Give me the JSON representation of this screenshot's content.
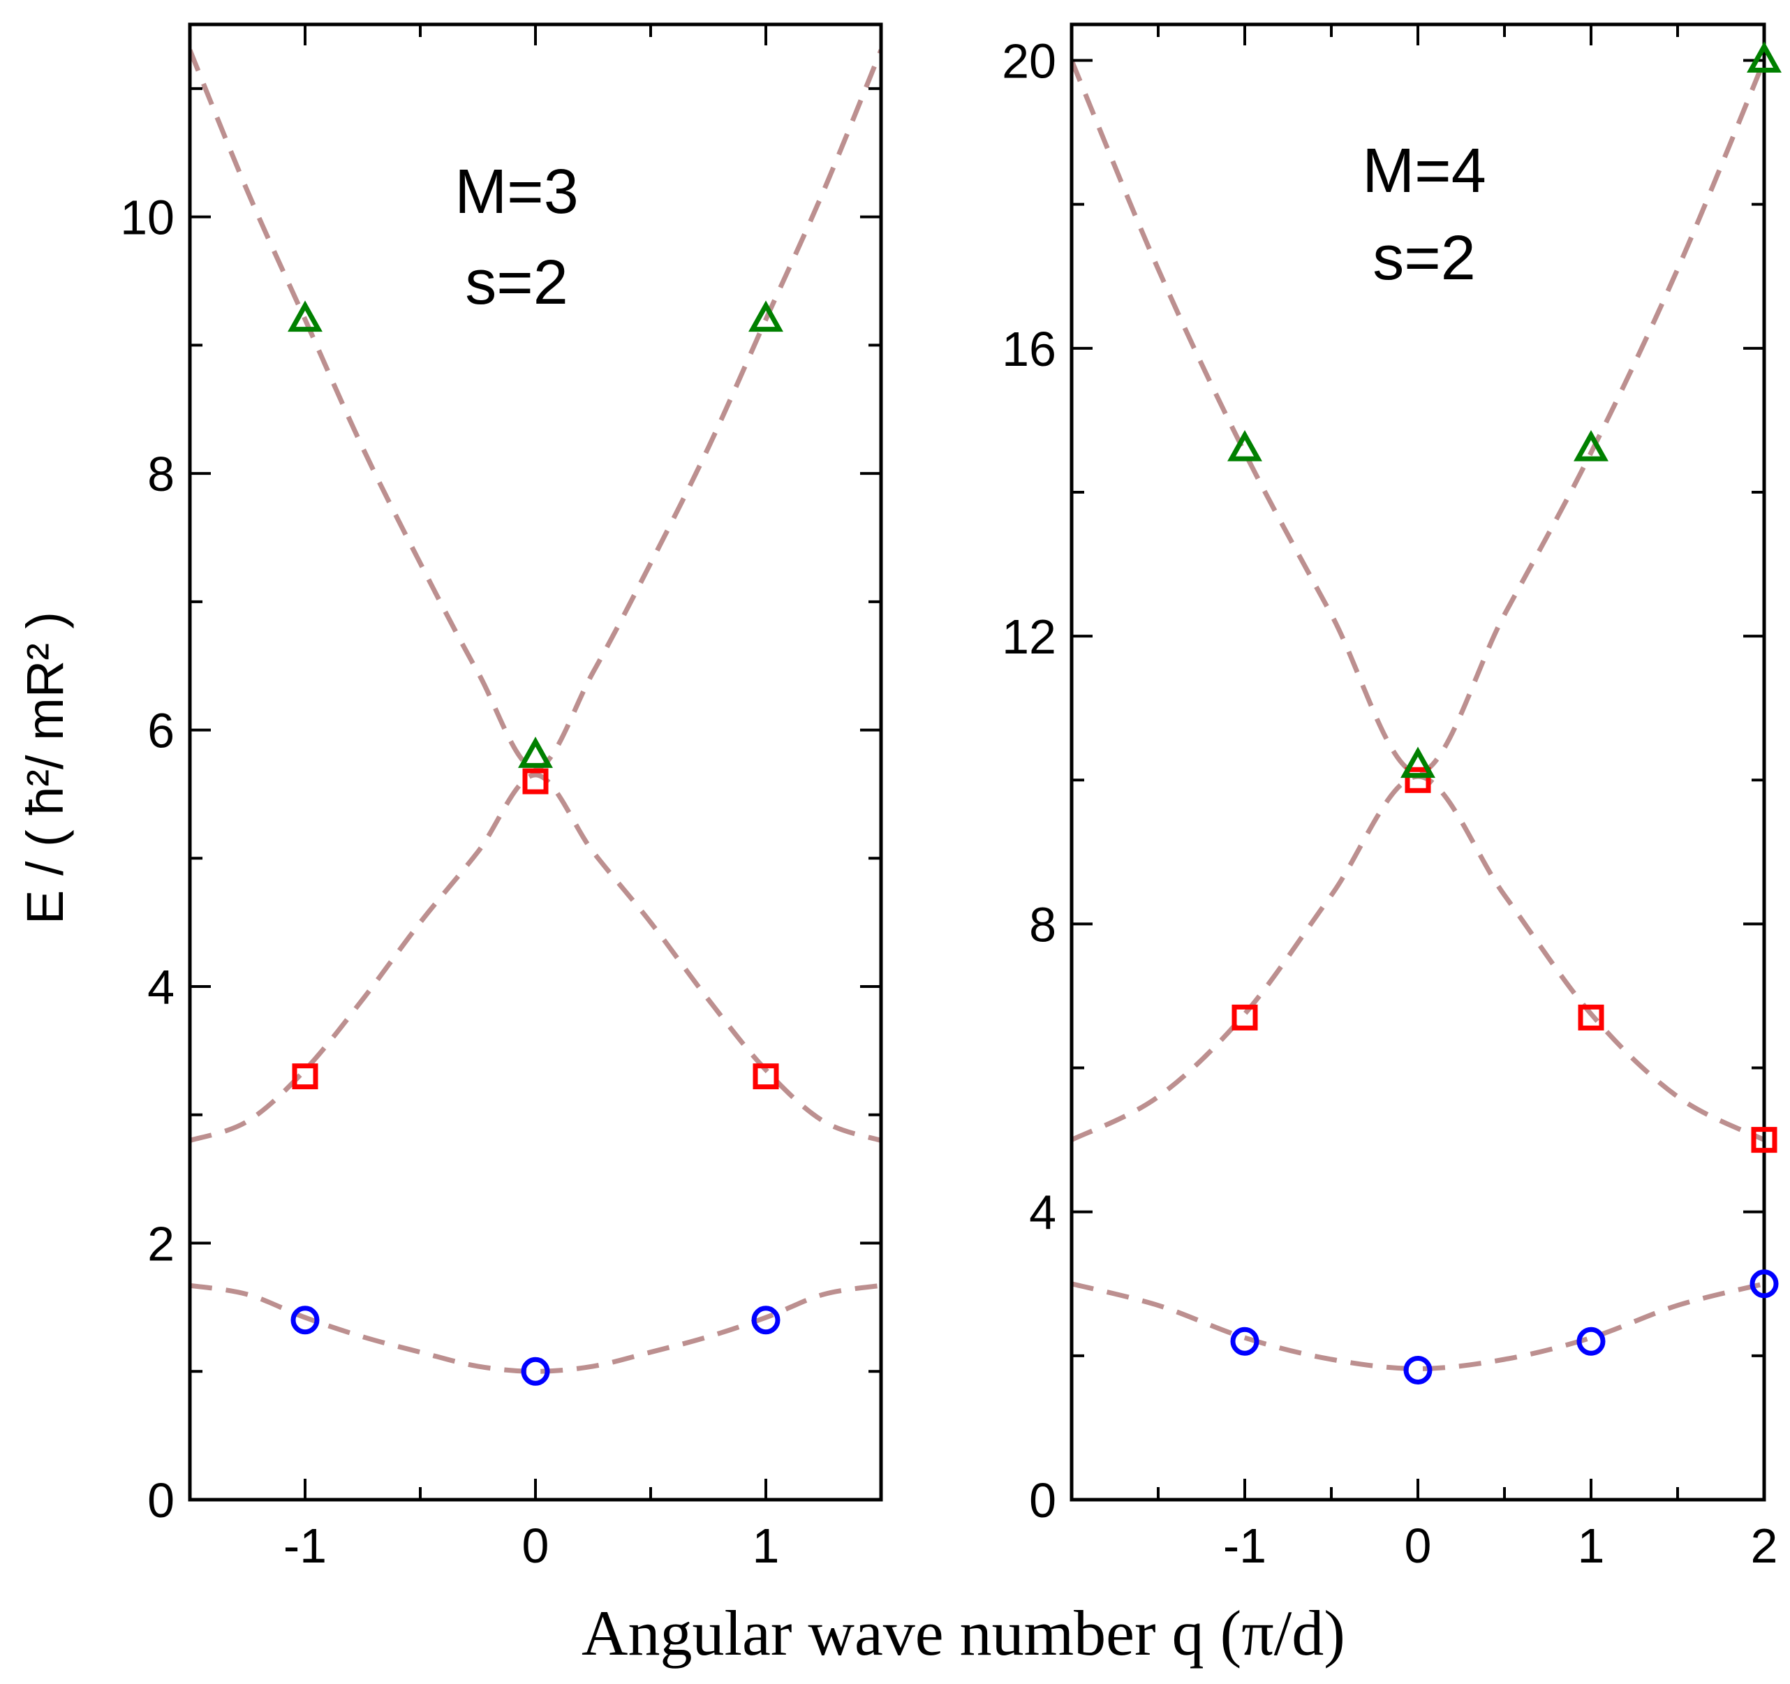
{
  "figure": {
    "ylabel": "E / ( ħ²/ mR² )",
    "xlabel": "Angular wave number q (π/d)"
  },
  "chart_data": [
    {
      "type": "scatter",
      "annotation": [
        "M=3",
        "s=2"
      ],
      "xlim": [
        -1.5,
        1.5
      ],
      "ylim": [
        0,
        11.5
      ],
      "x_ticks": [
        -1,
        0,
        1
      ],
      "x_tick_labels": [
        "-1",
        "0",
        "1"
      ],
      "y_ticks": [
        0,
        2,
        4,
        6,
        8,
        10
      ],
      "y_tick_labels": [
        "0",
        "2",
        "4",
        "6",
        "8",
        "10"
      ],
      "series": [
        {
          "marker": "circle",
          "color": "#0000ff",
          "x": [
            -1,
            0,
            1
          ],
          "y": [
            1.4,
            1.0,
            1.4
          ]
        },
        {
          "marker": "square",
          "color": "#ff0000",
          "x": [
            -1,
            0,
            1
          ],
          "y": [
            3.3,
            5.6,
            3.3
          ]
        },
        {
          "marker": "triangle",
          "color": "#008000",
          "x": [
            -1,
            0,
            1
          ],
          "y": [
            9.2,
            5.8,
            9.2
          ]
        }
      ],
      "curves": {
        "color": "#bc8f8f",
        "style": "dashed",
        "bands": [
          {
            "x": [
              -1.5,
              -1.25,
              -1,
              -0.75,
              -0.5,
              -0.25,
              0,
              0.25,
              0.5,
              0.75,
              1,
              1.25,
              1.5
            ],
            "y": [
              1.67,
              1.6,
              1.42,
              1.27,
              1.15,
              1.04,
              1.0,
              1.04,
              1.15,
              1.27,
              1.42,
              1.6,
              1.67
            ]
          },
          {
            "x": [
              -1.5,
              -1.25,
              -1,
              -0.75,
              -0.5,
              -0.25,
              0,
              0.25,
              0.5,
              0.75,
              1,
              1.25,
              1.5
            ],
            "y": [
              2.8,
              2.95,
              3.35,
              3.9,
              4.5,
              5.05,
              5.65,
              5.05,
              4.5,
              3.9,
              3.35,
              2.95,
              2.8
            ]
          },
          {
            "x": [
              -1.5,
              -1.25,
              -1,
              -0.75,
              -0.5,
              -0.25,
              0,
              0.25,
              0.5,
              0.75,
              1,
              1.25,
              1.5
            ],
            "y": [
              11.3,
              10.2,
              9.2,
              8.2,
              7.3,
              6.45,
              5.7,
              6.45,
              7.3,
              8.2,
              9.2,
              10.2,
              11.3
            ]
          }
        ]
      }
    },
    {
      "type": "scatter",
      "annotation": [
        "M=4",
        "s=2"
      ],
      "xlim": [
        -2,
        2
      ],
      "ylim": [
        0,
        20.5
      ],
      "x_ticks": [
        -1,
        0,
        1,
        2
      ],
      "x_tick_labels": [
        "-1",
        "0",
        "1",
        "2"
      ],
      "y_ticks": [
        0,
        4,
        8,
        12,
        16,
        20
      ],
      "y_tick_labels": [
        "0",
        "4",
        "8",
        "12",
        "16",
        "20"
      ],
      "series": [
        {
          "marker": "circle",
          "color": "#0000ff",
          "x": [
            -1,
            0,
            1,
            2
          ],
          "y": [
            2.2,
            1.8,
            2.2,
            3.0
          ]
        },
        {
          "marker": "square",
          "color": "#ff0000",
          "x": [
            -1,
            0,
            1,
            2
          ],
          "y": [
            6.7,
            10.0,
            6.7,
            5.0
          ]
        },
        {
          "marker": "triangle",
          "color": "#008000",
          "x": [
            -1,
            0,
            1,
            2
          ],
          "y": [
            14.6,
            10.2,
            14.6,
            20.0
          ]
        }
      ],
      "curves": {
        "color": "#bc8f8f",
        "style": "dashed",
        "bands": [
          {
            "x": [
              -2,
              -1.5,
              -1,
              -0.5,
              0,
              0.5,
              1,
              1.5,
              2
            ],
            "y": [
              3.0,
              2.7,
              2.25,
              1.95,
              1.82,
              1.95,
              2.25,
              2.7,
              3.0
            ]
          },
          {
            "x": [
              -2,
              -1.5,
              -1,
              -0.5,
              0,
              0.5,
              1,
              1.5,
              2
            ],
            "y": [
              5.0,
              5.6,
              6.75,
              8.4,
              10.05,
              8.4,
              6.75,
              5.6,
              5.0
            ]
          },
          {
            "x": [
              -2,
              -1.5,
              -1,
              -0.5,
              0,
              0.5,
              1,
              1.5,
              2
            ],
            "y": [
              20.0,
              17.1,
              14.55,
              12.3,
              10.1,
              12.3,
              14.55,
              17.1,
              20.0
            ]
          }
        ]
      }
    }
  ]
}
